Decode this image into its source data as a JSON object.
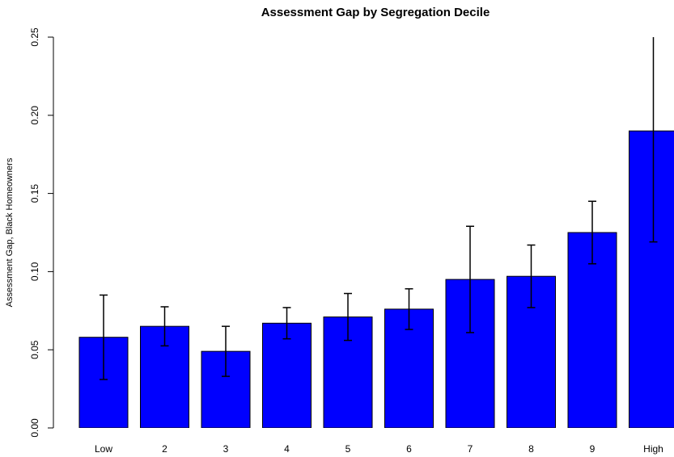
{
  "chart_data": {
    "type": "bar",
    "title": "Assessment Gap by Segregation Decile",
    "y_label": "Assessment Gap, Black Homeowners",
    "categories": [
      "Low",
      "2",
      "3",
      "4",
      "5",
      "6",
      "7",
      "8",
      "9",
      "High"
    ],
    "values": [
      0.058,
      0.065,
      0.049,
      0.067,
      0.071,
      0.076,
      0.095,
      0.097,
      0.125,
      0.19
    ],
    "errors": [
      0.027,
      0.0125,
      0.016,
      0.01,
      0.015,
      0.013,
      0.034,
      0.02,
      0.02,
      0.071
    ],
    "color": "#0000ff",
    "ylim": [
      0,
      0.25
    ],
    "yticks": [
      {
        "value": 0,
        "label": "0.00"
      },
      {
        "value": 0.05,
        "label": "0.05"
      },
      {
        "value": 0.1,
        "label": "0.10"
      },
      {
        "value": 0.15,
        "label": "0.15"
      },
      {
        "value": 0.2,
        "label": "0.20"
      },
      {
        "value": 0.25,
        "label": "0.25"
      }
    ]
  }
}
